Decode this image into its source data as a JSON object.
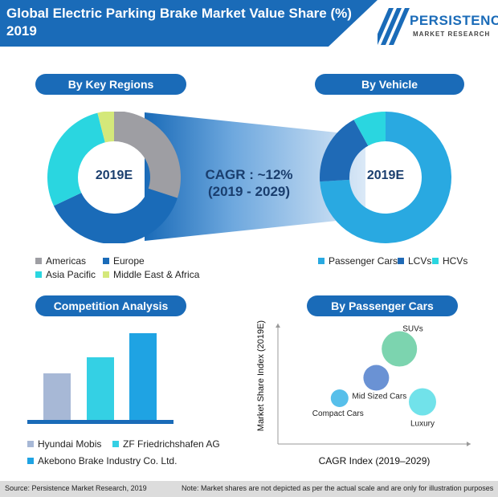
{
  "header": {
    "title": "Global Electric Parking Brake Market Value Share (%) 2019",
    "logo_name": "PERSISTENCE",
    "logo_sub": "MARKET RESEARCH"
  },
  "pills": {
    "regions": "By Key Regions",
    "vehicle": "By Vehicle",
    "competition": "Competition Analysis",
    "passenger": "By Passenger Cars"
  },
  "cagr": {
    "line1": "CAGR : ~12%",
    "line2": "(2019 - 2029)"
  },
  "colors": {
    "brand": "#1a6bb8",
    "americas": "#9e9ea3",
    "europe": "#1a6bb8",
    "asia_pacific": "#2ad6e0",
    "mea": "#d4e87a",
    "passenger": "#29a9e1",
    "lcvs": "#1f6ab6",
    "hcvs": "#2ad6e0",
    "hyundai": "#a7b8d6",
    "zf": "#34d0e4",
    "akebono": "#1fa3e3"
  },
  "chart_data": [
    {
      "type": "pie",
      "name": "By Key Regions",
      "center_label": "2019E",
      "labels": [
        "Americas",
        "Europe",
        "Asia Pacific",
        "Middle East & Africa"
      ],
      "values": [
        30,
        38,
        28,
        4
      ],
      "colors": [
        "#9e9ea3",
        "#1a6bb8",
        "#2ad6e0",
        "#d4e87a"
      ]
    },
    {
      "type": "pie",
      "name": "By Vehicle",
      "center_label": "2019E",
      "labels": [
        "Passenger Cars",
        "LCVs",
        "HCVs"
      ],
      "values": [
        74,
        18,
        8
      ],
      "colors": [
        "#29a9e1",
        "#1f6ab6",
        "#2ad6e0"
      ]
    },
    {
      "type": "bar",
      "name": "Competition Analysis",
      "categories": [
        "Hyundai Mobis",
        "ZF Friedrichshafen AG",
        "Akebono Brake Industry Co. Ltd."
      ],
      "values": [
        58,
        78,
        108
      ],
      "colors": [
        "#a7b8d6",
        "#34d0e4",
        "#1fa3e3"
      ]
    },
    {
      "type": "scatter",
      "name": "By Passenger Cars",
      "xlabel": "CAGR Index (2019–2029)",
      "ylabel": "Market Share Index (2019E)",
      "xlim": [
        0,
        10
      ],
      "ylim": [
        0,
        10
      ],
      "points": [
        {
          "label": "SUVs",
          "x": 6.3,
          "y": 7.9,
          "size": 22,
          "color": "#6ecfa6"
        },
        {
          "label": "Mid Sized Cars",
          "x": 5.1,
          "y": 5.5,
          "size": 16,
          "color": "#5a86cf"
        },
        {
          "label": "Luxury",
          "x": 7.5,
          "y": 3.5,
          "size": 17,
          "color": "#62dfe8"
        },
        {
          "label": "Compact Cars",
          "x": 3.2,
          "y": 3.8,
          "size": 11,
          "color": "#45b8e8"
        }
      ]
    }
  ],
  "footer": {
    "source": "Source: Persistence Market Research, 2019",
    "note": "Note: Market shares are not depicted as per the actual scale and are only for illustration purposes"
  }
}
